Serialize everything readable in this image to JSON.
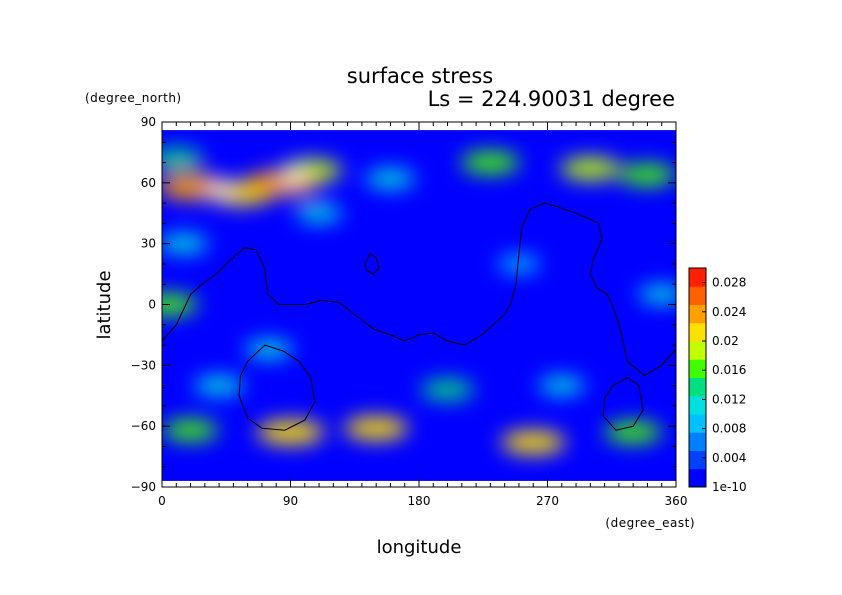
{
  "chart_data": {
    "type": "heatmap",
    "title": "surface stress",
    "subtitle": "Ls = 224.90031 degree",
    "xlabel": "longitude",
    "ylabel": "latitude",
    "x_unit": "(degree_east)",
    "y_unit": "(degree_north)",
    "xlim": [
      0,
      360
    ],
    "ylim": [
      -90,
      90
    ],
    "x_ticks": [
      "0",
      "90",
      "180",
      "270",
      "360"
    ],
    "y_ticks": [
      "90",
      "60",
      "30",
      "0",
      "−30",
      "−60",
      "−90"
    ],
    "x_tick_values": [
      0,
      90,
      180,
      270,
      360
    ],
    "y_tick_values": [
      90,
      60,
      30,
      0,
      -30,
      -60,
      -90
    ],
    "colorbar": {
      "labels": [
        "0.028",
        "0.024",
        "0.02",
        "0.016",
        "0.012",
        "0.008",
        "0.004",
        "1e-10"
      ],
      "values": [
        0.028,
        0.024,
        0.02,
        0.016,
        0.012,
        0.008,
        0.004,
        1e-10
      ],
      "vmin": 0,
      "vmax": 0.03,
      "colormap": [
        "#0000ff",
        "#0040ff",
        "#0080ff",
        "#00c0ff",
        "#00e0e0",
        "#00e080",
        "#40ff00",
        "#c0ff00",
        "#ffe000",
        "#ffa000",
        "#ff6000",
        "#ff2000"
      ]
    },
    "data_extent": {
      "lon": [
        0,
        360
      ],
      "lat": [
        -87,
        86
      ]
    },
    "above_max_color": "#ffffff",
    "regions": [
      {
        "lon": 40,
        "lat": 57,
        "value": 0.035
      },
      {
        "lon": 92,
        "lat": 63,
        "value": 0.035
      },
      {
        "lon": 22,
        "lat": 58,
        "value": 0.024
      },
      {
        "lon": 55,
        "lat": 55,
        "value": 0.022
      },
      {
        "lon": 85,
        "lat": 60,
        "value": 0.024
      },
      {
        "lon": 105,
        "lat": 66,
        "value": 0.018
      },
      {
        "lon": 10,
        "lat": 72,
        "value": 0.014
      },
      {
        "lon": 160,
        "lat": 62,
        "value": 0.012
      },
      {
        "lon": 230,
        "lat": 70,
        "value": 0.017
      },
      {
        "lon": 300,
        "lat": 67,
        "value": 0.018
      },
      {
        "lon": 340,
        "lat": 64,
        "value": 0.016
      },
      {
        "lon": 5,
        "lat": 0,
        "value": 0.016
      },
      {
        "lon": 15,
        "lat": 30,
        "value": 0.012
      },
      {
        "lon": 110,
        "lat": 45,
        "value": 0.01
      },
      {
        "lon": 75,
        "lat": -22,
        "value": 0.011
      },
      {
        "lon": 40,
        "lat": -40,
        "value": 0.012
      },
      {
        "lon": 200,
        "lat": -42,
        "value": 0.014
      },
      {
        "lon": 280,
        "lat": -40,
        "value": 0.01
      },
      {
        "lon": 90,
        "lat": -63,
        "value": 0.022
      },
      {
        "lon": 150,
        "lat": -61,
        "value": 0.02
      },
      {
        "lon": 20,
        "lat": -62,
        "value": 0.015
      },
      {
        "lon": 260,
        "lat": -68,
        "value": 0.02
      },
      {
        "lon": 330,
        "lat": -63,
        "value": 0.016
      },
      {
        "lon": 350,
        "lat": 5,
        "value": 0.01
      },
      {
        "lon": 250,
        "lat": 20,
        "value": 0.008
      }
    ],
    "contours": [
      [
        [
          0,
          -18
        ],
        [
          10,
          -10
        ],
        [
          20,
          5
        ],
        [
          28,
          10
        ],
        [
          38,
          15
        ],
        [
          48,
          22
        ],
        [
          58,
          28
        ],
        [
          66,
          27
        ],
        [
          72,
          18
        ],
        [
          74,
          5
        ],
        [
          82,
          0
        ],
        [
          100,
          0
        ],
        [
          112,
          2
        ],
        [
          124,
          1
        ],
        [
          135,
          -5
        ],
        [
          148,
          -12
        ],
        [
          160,
          -15
        ],
        [
          170,
          -18
        ],
        [
          180,
          -15
        ],
        [
          190,
          -14
        ],
        [
          200,
          -18
        ],
        [
          212,
          -20
        ],
        [
          224,
          -15
        ],
        [
          232,
          -10
        ],
        [
          240,
          -5
        ],
        [
          244,
          0
        ],
        [
          248,
          10
        ],
        [
          250,
          25
        ],
        [
          252,
          38
        ],
        [
          258,
          47
        ],
        [
          268,
          50
        ],
        [
          278,
          48
        ],
        [
          290,
          45
        ],
        [
          300,
          42
        ],
        [
          306,
          40
        ],
        [
          308,
          32
        ],
        [
          302,
          22
        ],
        [
          300,
          15
        ],
        [
          305,
          8
        ],
        [
          312,
          5
        ],
        [
          318,
          -5
        ],
        [
          322,
          -15
        ],
        [
          326,
          -28
        ],
        [
          338,
          -35
        ],
        [
          350,
          -30
        ],
        [
          360,
          -22
        ]
      ],
      [
        [
          142,
          20
        ],
        [
          146,
          25
        ],
        [
          150,
          23
        ],
        [
          152,
          18
        ],
        [
          148,
          15
        ],
        [
          143,
          17
        ],
        [
          142,
          20
        ]
      ],
      [
        [
          60,
          -28
        ],
        [
          72,
          -20
        ],
        [
          85,
          -23
        ],
        [
          96,
          -28
        ],
        [
          104,
          -36
        ],
        [
          107,
          -48
        ],
        [
          100,
          -57
        ],
        [
          86,
          -62
        ],
        [
          70,
          -61
        ],
        [
          60,
          -56
        ],
        [
          54,
          -45
        ],
        [
          55,
          -35
        ],
        [
          60,
          -28
        ]
      ],
      [
        [
          316,
          -40
        ],
        [
          326,
          -36
        ],
        [
          334,
          -40
        ],
        [
          337,
          -52
        ],
        [
          330,
          -60
        ],
        [
          318,
          -62
        ],
        [
          309,
          -55
        ],
        [
          310,
          -46
        ],
        [
          316,
          -40
        ]
      ]
    ]
  }
}
